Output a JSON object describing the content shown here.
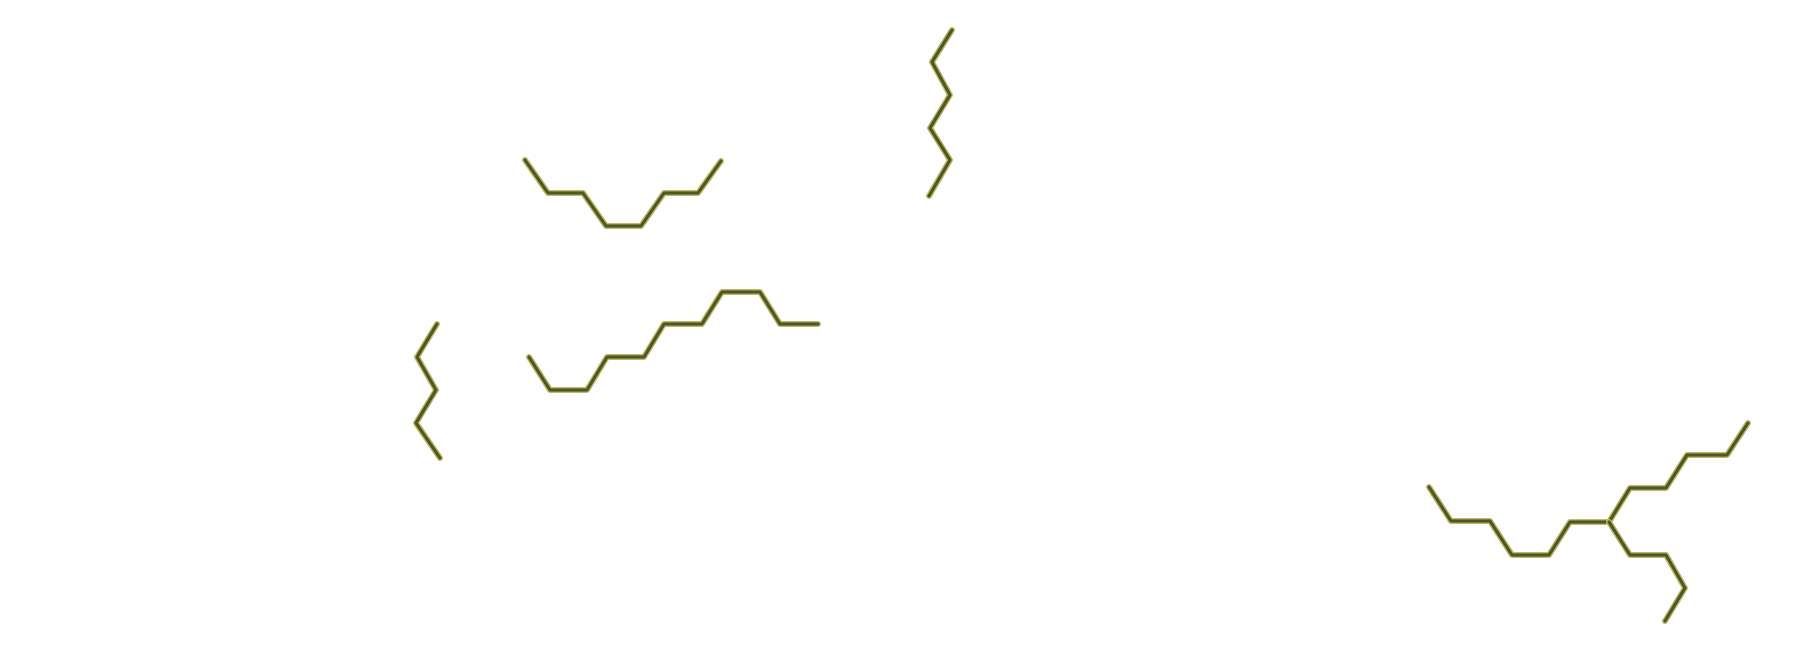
{
  "colors": {
    "background": "#ffffff",
    "bond_dark": "#4a5a22",
    "bond_highlight": "#c7b66a"
  },
  "structures": [
    {
      "id": "chain-u-shape"
    },
    {
      "id": "chain-vertical-top"
    },
    {
      "id": "chain-long-wave"
    },
    {
      "id": "chain-vertical-left"
    },
    {
      "id": "chain-branched"
    }
  ]
}
